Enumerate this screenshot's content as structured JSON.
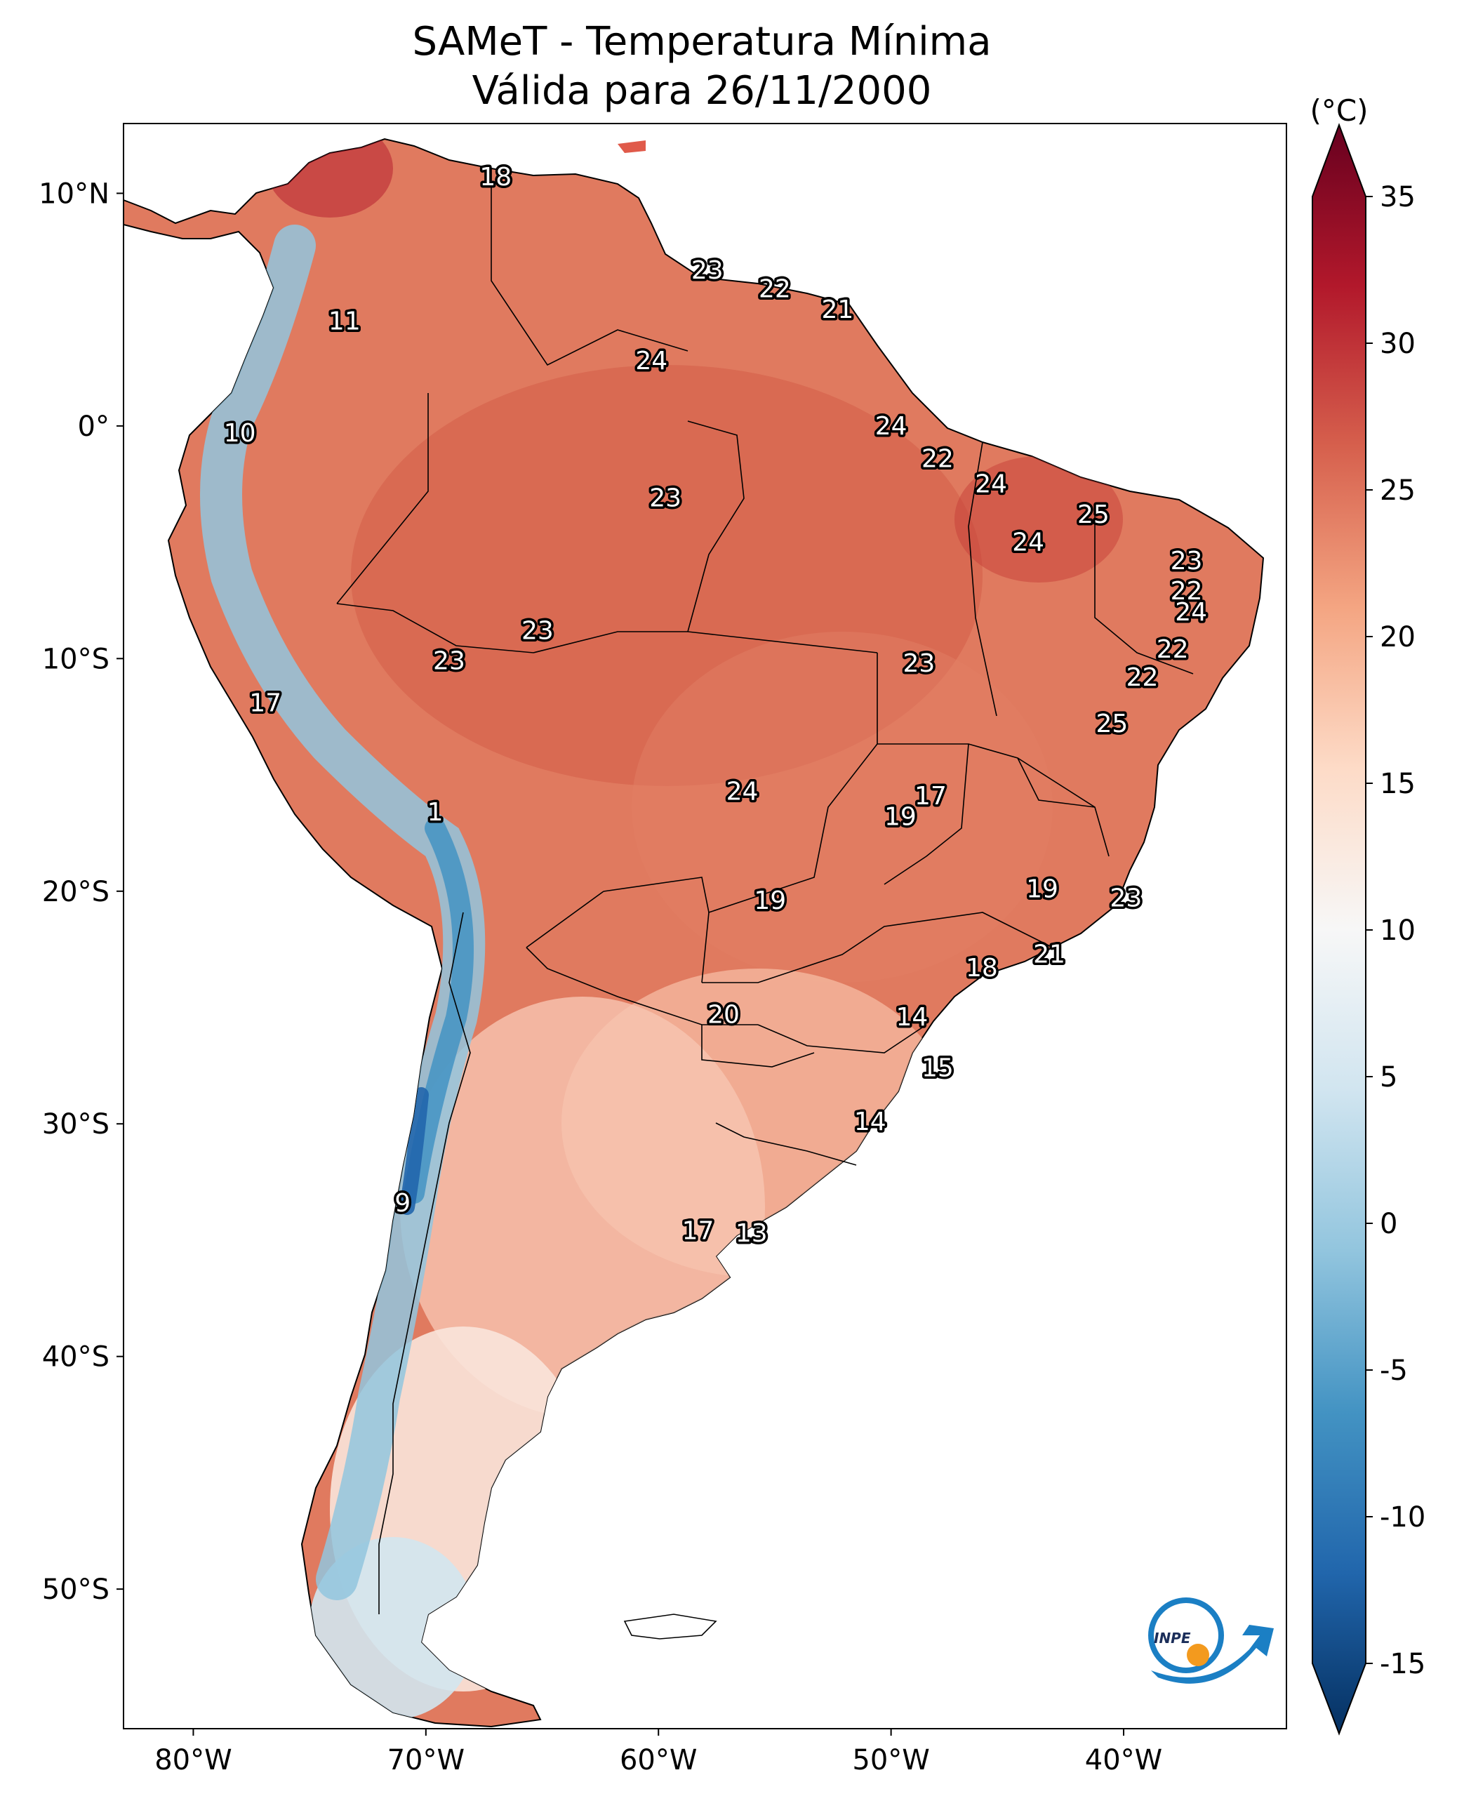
{
  "title": {
    "line1": "SAMeT - Temperatura Mínima",
    "line2": "Válida para 26/11/2000"
  },
  "map": {
    "lon_range": [
      -83,
      -33
    ],
    "lat_range": [
      -56,
      13
    ],
    "lat_ticks": [
      {
        "value": 10,
        "label": "10°N"
      },
      {
        "value": 0,
        "label": "0°"
      },
      {
        "value": -10,
        "label": "10°S"
      },
      {
        "value": -20,
        "label": "20°S"
      },
      {
        "value": -30,
        "label": "30°S"
      },
      {
        "value": -40,
        "label": "40°S"
      },
      {
        "value": -50,
        "label": "50°S"
      }
    ],
    "lon_ticks": [
      {
        "value": -80,
        "label": "80°W"
      },
      {
        "value": -70,
        "label": "70°W"
      },
      {
        "value": -60,
        "label": "60°W"
      },
      {
        "value": -50,
        "label": "50°W"
      },
      {
        "value": -40,
        "label": "40°W"
      }
    ],
    "station_values": [
      {
        "lon": -67.0,
        "lat": 10.7,
        "label": "18"
      },
      {
        "lon": -57.9,
        "lat": 6.7,
        "label": "23"
      },
      {
        "lon": -55.0,
        "lat": 5.9,
        "label": "22"
      },
      {
        "lon": -52.3,
        "lat": 5.0,
        "label": "21"
      },
      {
        "lon": -73.5,
        "lat": 4.5,
        "label": "11"
      },
      {
        "lon": -60.3,
        "lat": 2.8,
        "label": "24"
      },
      {
        "lon": -50.0,
        "lat": 0.0,
        "label": "24"
      },
      {
        "lon": -78.0,
        "lat": -0.3,
        "label": "10"
      },
      {
        "lon": -48.0,
        "lat": -1.4,
        "label": "22"
      },
      {
        "lon": -45.7,
        "lat": -2.5,
        "label": "24"
      },
      {
        "lon": -59.7,
        "lat": -3.1,
        "label": "23"
      },
      {
        "lon": -41.3,
        "lat": -3.8,
        "label": "25"
      },
      {
        "lon": -44.1,
        "lat": -5.0,
        "label": "24"
      },
      {
        "lon": -37.3,
        "lat": -5.8,
        "label": "23"
      },
      {
        "lon": -37.3,
        "lat": -7.1,
        "label": "22"
      },
      {
        "lon": -37.1,
        "lat": -8.0,
        "label": "24"
      },
      {
        "lon": -65.2,
        "lat": -8.8,
        "label": "23"
      },
      {
        "lon": -37.9,
        "lat": -9.6,
        "label": "22"
      },
      {
        "lon": -69.0,
        "lat": -10.1,
        "label": "23"
      },
      {
        "lon": -48.8,
        "lat": -10.2,
        "label": "23"
      },
      {
        "lon": -39.2,
        "lat": -10.8,
        "label": "22"
      },
      {
        "lon": -76.9,
        "lat": -11.9,
        "label": "17"
      },
      {
        "lon": -40.5,
        "lat": -12.8,
        "label": "25"
      },
      {
        "lon": -56.4,
        "lat": -15.7,
        "label": "24"
      },
      {
        "lon": -48.3,
        "lat": -15.9,
        "label": "17"
      },
      {
        "lon": -69.6,
        "lat": -16.6,
        "label": "1"
      },
      {
        "lon": -49.6,
        "lat": -16.8,
        "label": "19"
      },
      {
        "lon": -43.5,
        "lat": -19.9,
        "label": "19"
      },
      {
        "lon": -55.2,
        "lat": -20.4,
        "label": "19"
      },
      {
        "lon": -39.9,
        "lat": -20.3,
        "label": "23"
      },
      {
        "lon": -43.2,
        "lat": -22.7,
        "label": "21"
      },
      {
        "lon": -46.1,
        "lat": -23.3,
        "label": "18"
      },
      {
        "lon": -57.2,
        "lat": -25.3,
        "label": "20"
      },
      {
        "lon": -49.1,
        "lat": -25.4,
        "label": "14"
      },
      {
        "lon": -48.0,
        "lat": -27.6,
        "label": "15"
      },
      {
        "lon": -50.9,
        "lat": -29.9,
        "label": "14"
      },
      {
        "lon": -71.0,
        "lat": -33.4,
        "label": "9"
      },
      {
        "lon": -58.3,
        "lat": -34.6,
        "label": "17"
      },
      {
        "lon": -56.0,
        "lat": -34.7,
        "label": "13"
      }
    ]
  },
  "colorbar": {
    "unit": "(°C)",
    "min": -15,
    "max": 35,
    "ticks": [
      {
        "value": 35,
        "label": "35"
      },
      {
        "value": 30,
        "label": "30"
      },
      {
        "value": 25,
        "label": "25"
      },
      {
        "value": 20,
        "label": "20"
      },
      {
        "value": 15,
        "label": "15"
      },
      {
        "value": 10,
        "label": "10"
      },
      {
        "value": 5,
        "label": "5"
      },
      {
        "value": 0,
        "label": "0"
      },
      {
        "value": -5,
        "label": "-5"
      },
      {
        "value": -10,
        "label": "-10"
      },
      {
        "value": -15,
        "label": "-15"
      }
    ],
    "colors": [
      "#053061",
      "#2166ac",
      "#4393c3",
      "#92c5de",
      "#d1e5f0",
      "#f7f7f7",
      "#fddbc7",
      "#f4a582",
      "#d6604d",
      "#b2182b",
      "#67001f"
    ]
  },
  "logo": {
    "text": "INPE",
    "blue": "#1b7fc4",
    "orange": "#f39a1e"
  }
}
